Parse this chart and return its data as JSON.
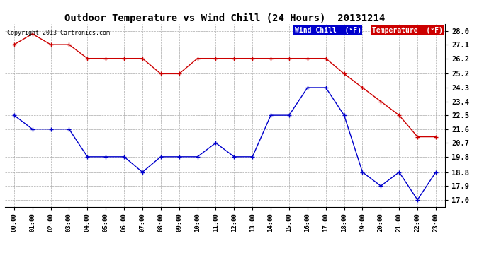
{
  "title": "Outdoor Temperature vs Wind Chill (24 Hours)  20131214",
  "copyright": "Copyright 2013 Cartronics.com",
  "x_labels": [
    "00:00",
    "01:00",
    "02:00",
    "03:00",
    "04:00",
    "05:00",
    "06:00",
    "07:00",
    "08:00",
    "09:00",
    "10:00",
    "11:00",
    "12:00",
    "13:00",
    "14:00",
    "15:00",
    "16:00",
    "17:00",
    "18:00",
    "19:00",
    "20:00",
    "21:00",
    "22:00",
    "23:00"
  ],
  "y_ticks": [
    17.0,
    17.9,
    18.8,
    19.8,
    20.7,
    21.6,
    22.5,
    23.4,
    24.3,
    25.2,
    26.2,
    27.1,
    28.0
  ],
  "ylim": [
    16.55,
    28.45
  ],
  "temperature": [
    27.1,
    27.8,
    27.1,
    27.1,
    26.2,
    26.2,
    26.2,
    26.2,
    25.2,
    25.2,
    26.2,
    26.2,
    26.2,
    26.2,
    26.2,
    26.2,
    26.2,
    26.2,
    25.2,
    24.3,
    23.4,
    22.5,
    21.1,
    21.1
  ],
  "wind_chill": [
    22.5,
    21.6,
    21.6,
    21.6,
    19.8,
    19.8,
    19.8,
    18.8,
    19.8,
    19.8,
    19.8,
    20.7,
    19.8,
    19.8,
    22.5,
    22.5,
    24.3,
    24.3,
    22.5,
    18.8,
    17.9,
    18.8,
    17.0,
    18.8
  ],
  "temp_color": "#cc0000",
  "wind_chill_color": "#0000cc",
  "bg_color": "#ffffff",
  "grid_color": "#aaaaaa",
  "legend_wind_bg": "#0000cc",
  "legend_temp_bg": "#cc0000",
  "legend_wind_text": "Wind Chill  (°F)",
  "legend_temp_text": "Temperature  (°F)"
}
